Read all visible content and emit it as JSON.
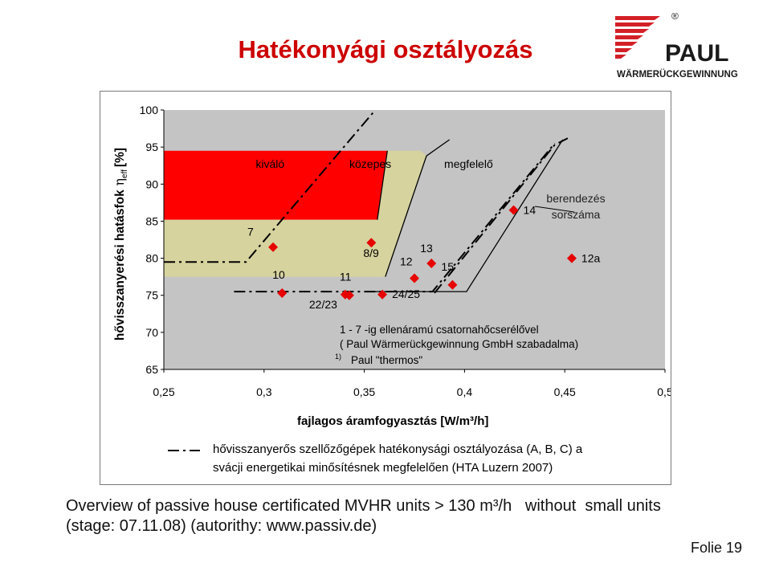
{
  "slide": {
    "title": "Hatékonyági osztályozás",
    "footer_line1": "Overview of passive house certificated MVHR units > 130 m³/h   without  small units",
    "footer_line2": "(stage: 07.11.08) (autorithy: www.passiv.de)",
    "page": "Folie 19"
  },
  "logo": {
    "registered": "®",
    "name": "PAUL",
    "tagline": "WÄRMERÜCKGEWINNUNG",
    "colors": {
      "stripes": "#d32027",
      "text": "#1a1a1a"
    }
  },
  "chart_data": {
    "type": "scatter",
    "xlabel": "fajlagos áramfogyasztás [W/m³/h]",
    "ylabel_main": "hővisszanyerési hatásfok",
    "ylabel_symbol": "η",
    "ylabel_subscript": "eff",
    "ylabel_unit": "[%]",
    "xlim": [
      0.25,
      0.5
    ],
    "ylim": [
      65,
      100
    ],
    "x_ticks": [
      "0,25",
      "0,3",
      "0,35",
      "0,4",
      "0,45",
      "0,5"
    ],
    "y_ticks": [
      "65",
      "70",
      "75",
      "80",
      "85",
      "90",
      "95",
      "100"
    ],
    "zones": [
      {
        "label": "kiváló",
        "color": "#ff0000",
        "points": [
          [
            0.25,
            94.5
          ],
          [
            0.3615,
            94.5
          ],
          [
            0.3565,
            85.2
          ],
          [
            0.25,
            85.2
          ]
        ]
      },
      {
        "label": "közepes",
        "color": "#d6d39e",
        "points": [
          [
            0.25,
            85.2
          ],
          [
            0.3565,
            85.2
          ],
          [
            0.3615,
            94.5
          ],
          [
            0.378,
            94.5
          ],
          [
            0.381,
            93.8
          ],
          [
            0.3605,
            77.5
          ],
          [
            0.25,
            77.5
          ]
        ]
      }
    ],
    "zone_lines": [
      [
        [
          0.3565,
          85.2
        ],
        [
          0.3615,
          94.5
        ]
      ],
      [
        [
          0.3605,
          77.5
        ],
        [
          0.381,
          93.8
        ],
        [
          0.3925,
          96
        ]
      ],
      [
        [
          0.354,
          75.5
        ],
        [
          0.401,
          75.5
        ],
        [
          0.449,
          96
        ]
      ]
    ],
    "zone_labels": [
      {
        "text": "kiváló",
        "x": 0.303,
        "y": 92.2
      },
      {
        "text": "közepes",
        "x": 0.353,
        "y": 92.2
      },
      {
        "text": "megfelelő",
        "x": 0.402,
        "y": 92.2
      }
    ],
    "hta_lines": [
      [
        [
          0.25,
          79.5
        ],
        [
          0.291,
          79.5
        ],
        [
          0.3555,
          100
        ]
      ],
      [
        [
          0.285,
          75.5
        ],
        [
          0.384,
          75.5
        ],
        [
          0.445,
          95.5
        ]
      ],
      [
        [
          0.385,
          75.3
        ],
        [
          0.445,
          95.3
        ],
        [
          0.4515,
          96.2
        ]
      ]
    ],
    "series": [
      {
        "label_color": "#000000",
        "marker_color": "#e60000",
        "points": [
          {
            "label": "7",
            "x": 0.3045,
            "y": 81.5
          },
          {
            "label": "8/9",
            "x": 0.3535,
            "y": 82.1
          },
          {
            "label": "10",
            "x": 0.309,
            "y": 75.3
          },
          {
            "label": "11",
            "x": 0.3425,
            "y": 75.0
          },
          {
            "label": "22/23",
            "x": 0.3405,
            "y": 75.1
          },
          {
            "label": "24/25",
            "x": 0.359,
            "y": 75.1
          },
          {
            "label": "12",
            "x": 0.375,
            "y": 77.3
          },
          {
            "label": "13",
            "x": 0.3835,
            "y": 79.3
          },
          {
            "label": "15",
            "x": 0.394,
            "y": 76.4
          },
          {
            "label": "14",
            "x": 0.4245,
            "y": 86.5
          },
          {
            "label": "12a",
            "x": 0.4535,
            "y": 80.0
          }
        ]
      }
    ],
    "series_heading": [
      "berendezés",
      "sorszáma"
    ],
    "notes": [
      "1 - 7 -ig ellenáramú csatornahőcserélővel",
      "( Paul Wärmerückgewinnung GmbH szabadalma)"
    ],
    "footnote_mark": "1)",
    "footnote_text": "Paul \"thermos\"",
    "legend_text": [
      "hővisszanyerős szellőzőgépek hatékonysági osztályozása (A, B, C) a",
      "svácji energetikai minősítésnek megfelelően (HTA Luzern 2007)"
    ],
    "colors": {
      "plot_bg": "#c4c4c4",
      "excellent": "#ff0000",
      "medium": "#d6d39e",
      "marker": "#e60000",
      "lines": "#000000"
    }
  }
}
